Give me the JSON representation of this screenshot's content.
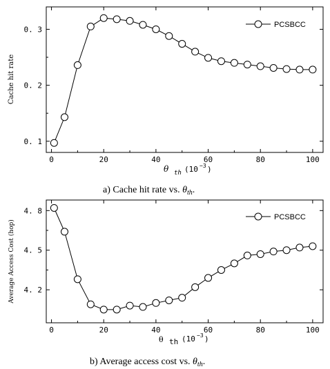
{
  "chart_data": [
    {
      "type": "line",
      "xlabel": "θ_th(10^-3)",
      "ylabel": "Cache hit rate",
      "xlim": [
        -2,
        104
      ],
      "ylim": [
        0.08,
        0.34
      ],
      "xticks": [
        0,
        20,
        40,
        60,
        80,
        100
      ],
      "yticks": [
        0.1,
        0.2,
        0.3
      ],
      "ytick_labels": [
        "0. 1",
        "0. 2",
        "0. 3"
      ],
      "legend": "top-right",
      "x": [
        1,
        5,
        10,
        15,
        20,
        25,
        30,
        35,
        40,
        45,
        50,
        55,
        60,
        65,
        70,
        75,
        80,
        85,
        90,
        95,
        100
      ],
      "series": [
        {
          "name": "PCSBCC",
          "values": [
            0.097,
            0.143,
            0.236,
            0.305,
            0.32,
            0.318,
            0.315,
            0.308,
            0.3,
            0.288,
            0.274,
            0.26,
            0.249,
            0.243,
            0.24,
            0.237,
            0.234,
            0.231,
            0.229,
            0.228,
            0.228
          ]
        }
      ],
      "caption": "a) Cache hit rate vs. θth."
    },
    {
      "type": "line",
      "xlabel": "θ th(10^-3)",
      "ylabel": "Average Access Cost (hop)",
      "xlim": [
        -2,
        104
      ],
      "ylim": [
        3.95,
        4.88
      ],
      "xticks": [
        0,
        20,
        40,
        60,
        80,
        100
      ],
      "yticks": [
        4.2,
        4.5,
        4.8
      ],
      "ytick_labels": [
        "4. 2",
        "4. 5",
        "4. 8"
      ],
      "legend": "top-right",
      "x": [
        1,
        5,
        10,
        15,
        20,
        25,
        30,
        35,
        40,
        45,
        50,
        55,
        60,
        65,
        70,
        75,
        80,
        85,
        90,
        95,
        100
      ],
      "series": [
        {
          "name": "PCSBCC",
          "values": [
            4.82,
            4.64,
            4.28,
            4.09,
            4.05,
            4.05,
            4.08,
            4.07,
            4.1,
            4.12,
            4.14,
            4.22,
            4.29,
            4.35,
            4.4,
            4.46,
            4.47,
            4.49,
            4.5,
            4.52,
            4.53
          ]
        }
      ],
      "caption": "b) Average access cost vs. θth."
    }
  ]
}
